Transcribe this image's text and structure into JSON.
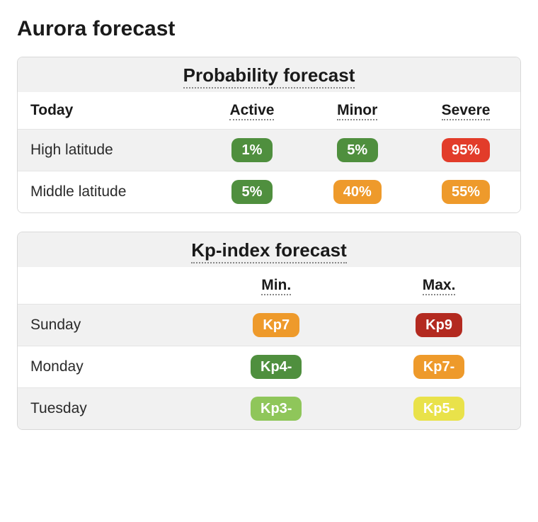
{
  "page_title": "Aurora forecast",
  "colors": {
    "green": "#4f8f3e",
    "green_light": "#8fc65a",
    "yellow": "#e9e24a",
    "orange": "#ee9a2b",
    "red": "#e23c2a",
    "red_dark": "#b32a20"
  },
  "probability": {
    "title": "Probability forecast",
    "first_col_header": "Today",
    "columns": [
      "Active",
      "Minor",
      "Severe"
    ],
    "rows": [
      {
        "label": "High latitude",
        "cells": [
          {
            "value": "1%",
            "color_key": "green"
          },
          {
            "value": "5%",
            "color_key": "green"
          },
          {
            "value": "95%",
            "color_key": "red"
          }
        ]
      },
      {
        "label": "Middle latitude",
        "cells": [
          {
            "value": "5%",
            "color_key": "green"
          },
          {
            "value": "40%",
            "color_key": "orange"
          },
          {
            "value": "55%",
            "color_key": "orange"
          }
        ]
      }
    ]
  },
  "kp": {
    "title": "Kp-index forecast",
    "first_col_header": "",
    "columns": [
      "Min.",
      "Max."
    ],
    "rows": [
      {
        "label": "Sunday",
        "cells": [
          {
            "value": "Kp7",
            "color_key": "orange"
          },
          {
            "value": "Kp9",
            "color_key": "red_dark"
          }
        ]
      },
      {
        "label": "Monday",
        "cells": [
          {
            "value": "Kp4-",
            "color_key": "green"
          },
          {
            "value": "Kp7-",
            "color_key": "orange"
          }
        ]
      },
      {
        "label": "Tuesday",
        "cells": [
          {
            "value": "Kp3-",
            "color_key": "green_light"
          },
          {
            "value": "Kp5-",
            "color_key": "yellow"
          }
        ]
      }
    ]
  }
}
